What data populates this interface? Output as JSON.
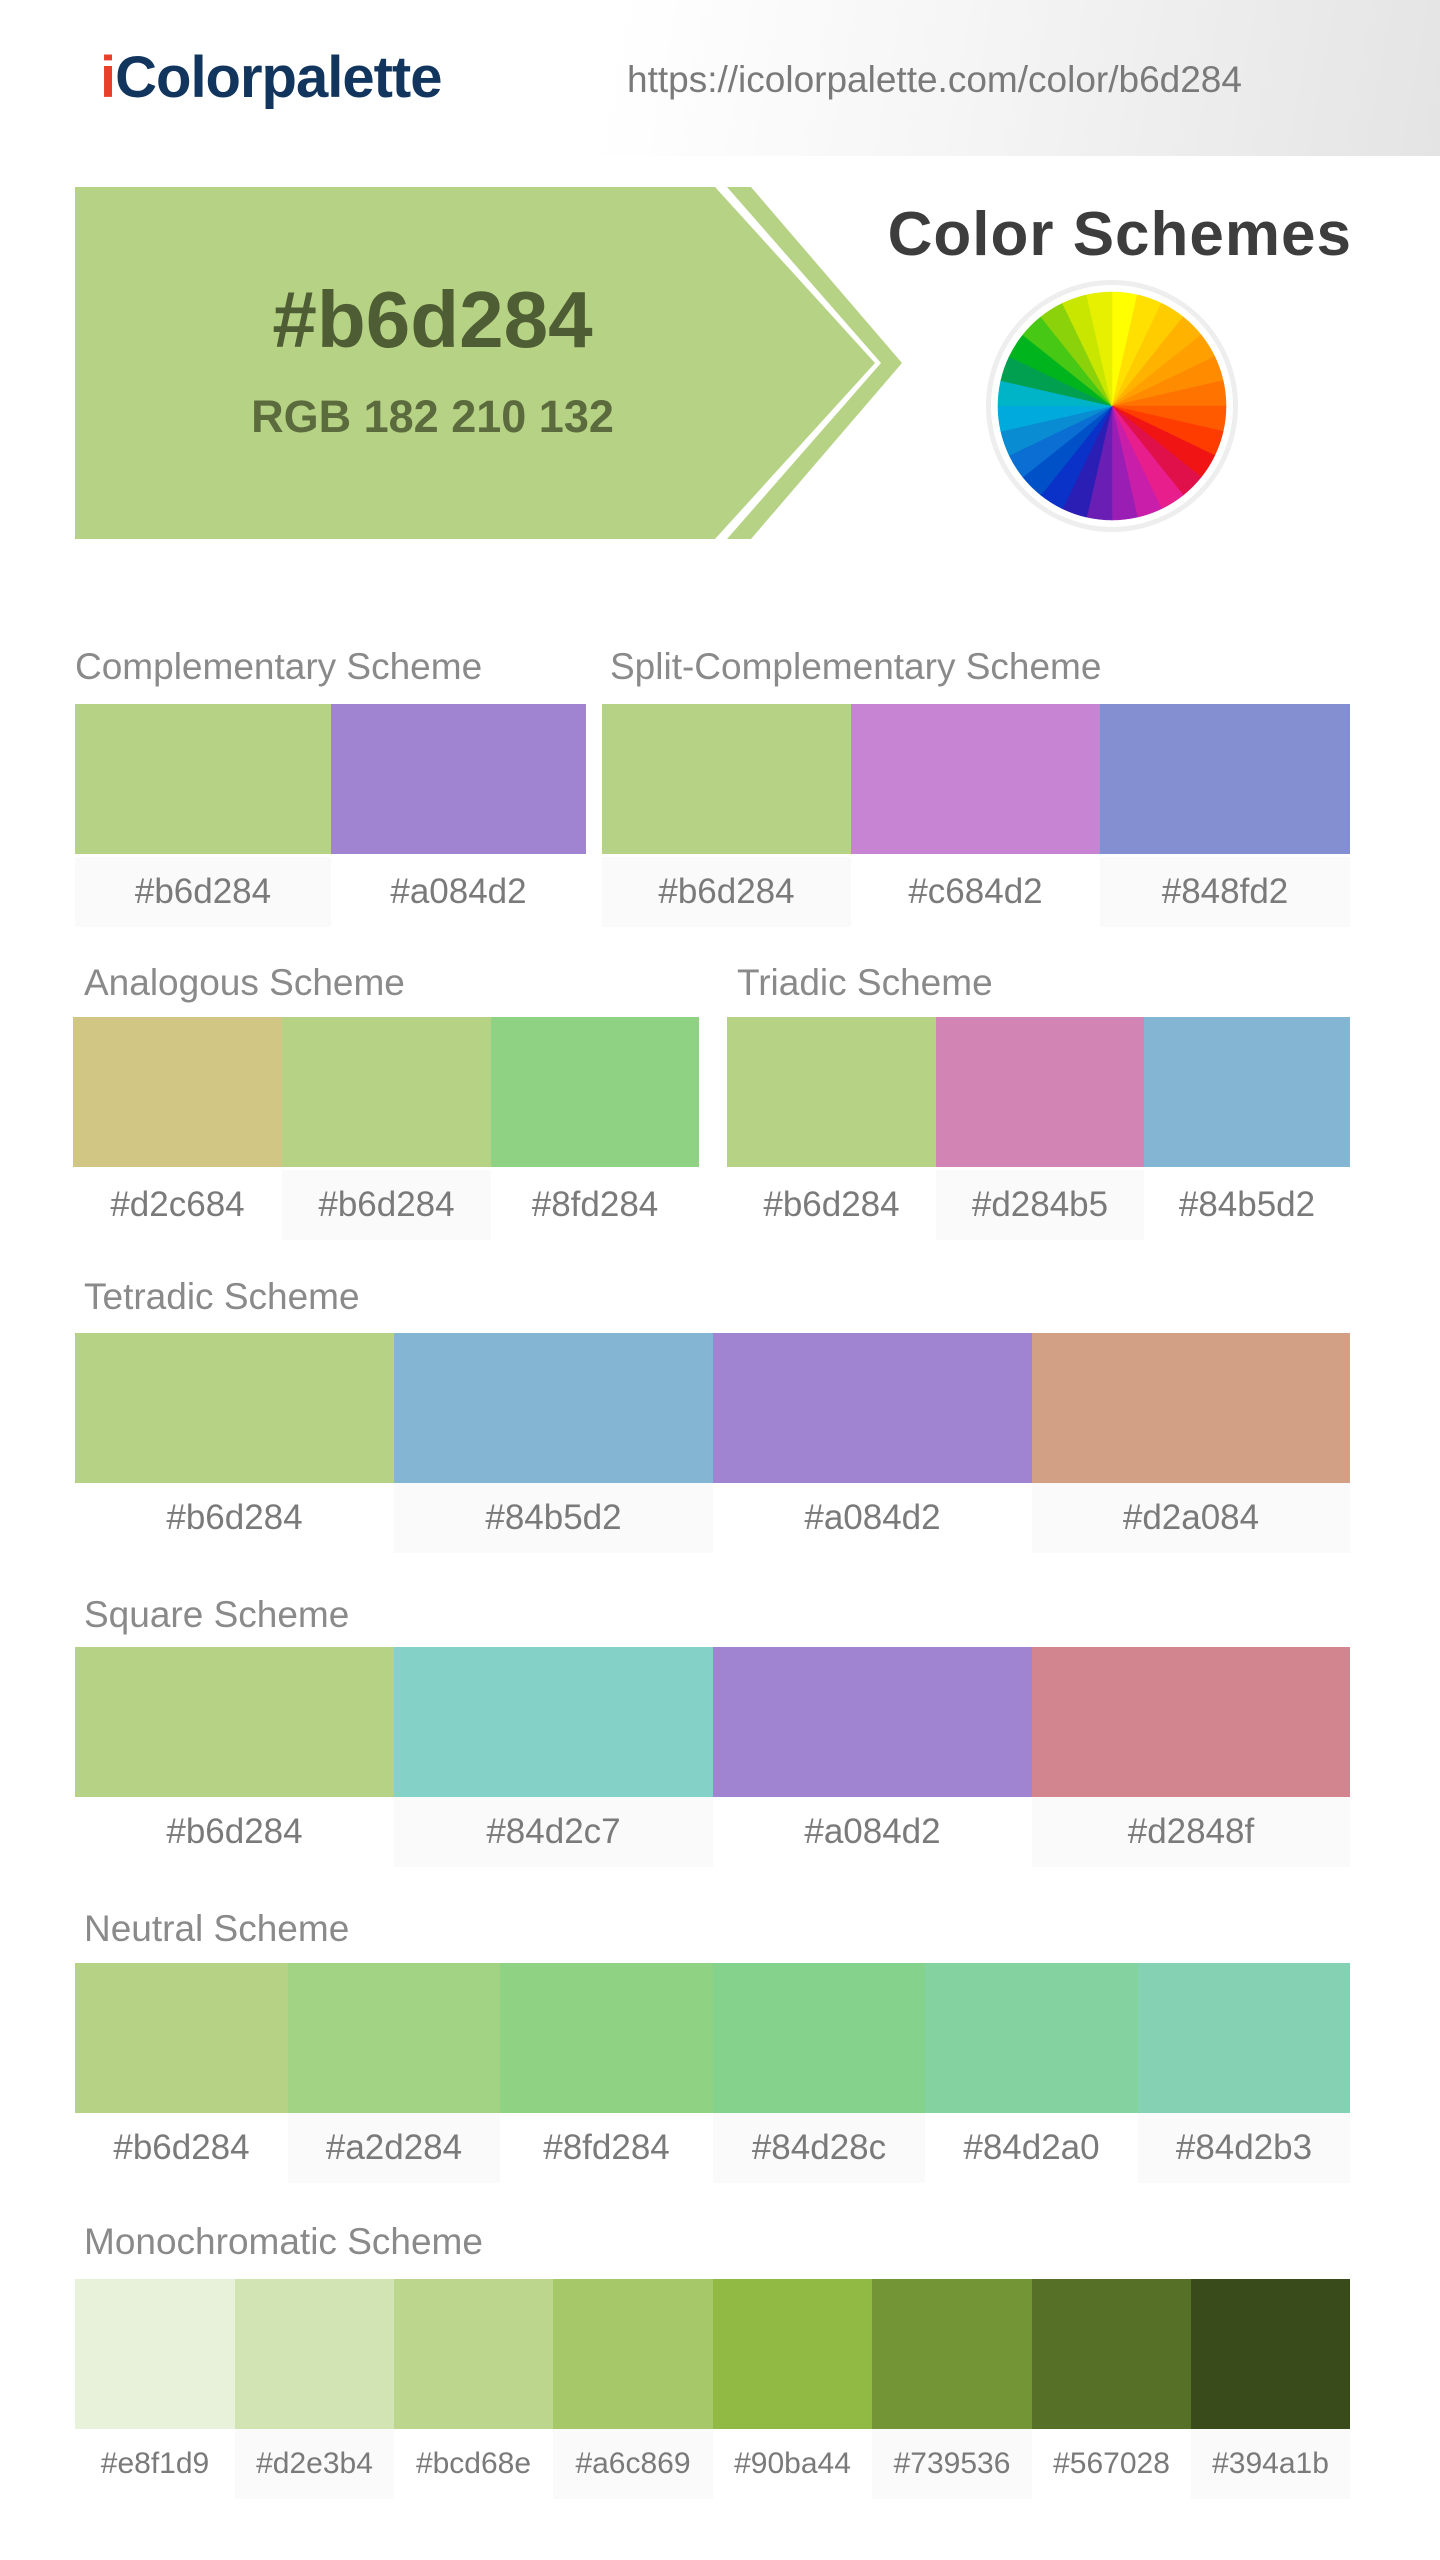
{
  "site": {
    "logo_i": "i",
    "logo_rest": "Colorpalette",
    "url": "https://icolorpalette.com/color/b6d284"
  },
  "hero": {
    "hex": "#b6d284",
    "rgb": "RGB 182 210 132",
    "title": "Color Schemes",
    "color": "#b6d284"
  },
  "schemes": {
    "complementary": {
      "title": "Complementary Scheme",
      "colors": [
        "#b6d284",
        "#a084d2"
      ]
    },
    "split": {
      "title": "Split-Complementary Scheme",
      "colors": [
        "#b6d284",
        "#c684d2",
        "#848fd2"
      ]
    },
    "analogous": {
      "title": "Analogous Scheme",
      "colors": [
        "#d2c684",
        "#b6d284",
        "#8fd284"
      ]
    },
    "triadic": {
      "title": "Triadic Scheme",
      "colors": [
        "#b6d284",
        "#d284b5",
        "#84b5d2"
      ]
    },
    "tetradic": {
      "title": "Tetradic Scheme",
      "colors": [
        "#b6d284",
        "#84b5d2",
        "#a084d2",
        "#d2a084"
      ]
    },
    "square": {
      "title": "Square Scheme",
      "colors": [
        "#b6d284",
        "#84d2c7",
        "#a084d2",
        "#d2848f"
      ]
    },
    "neutral": {
      "title": "Neutral Scheme",
      "colors": [
        "#b6d284",
        "#a2d284",
        "#8fd284",
        "#84d28c",
        "#84d2a0",
        "#84d2b3"
      ]
    },
    "monochromatic": {
      "title": "Monochromatic Scheme",
      "colors": [
        "#e8f1d9",
        "#d2e3b4",
        "#bcd68e",
        "#a6c869",
        "#90ba44",
        "#739536",
        "#567028",
        "#394a1b"
      ]
    }
  },
  "wheel_colors": [
    "#ffff00",
    "#ffe000",
    "#ffcc00",
    "#ffb300",
    "#ffa000",
    "#ff8c00",
    "#ff7300",
    "#ff5a00",
    "#ff3c00",
    "#f01414",
    "#e0104a",
    "#e81e8c",
    "#c81eaa",
    "#9a1eb4",
    "#6a1eb4",
    "#2a1eb4",
    "#0a32c8",
    "#0050c8",
    "#0a6ed2",
    "#0a8cd2",
    "#00aadc",
    "#00b4c8",
    "#00a050",
    "#00b41e",
    "#46c814",
    "#8cd20a",
    "#c8e600",
    "#e6f000"
  ]
}
